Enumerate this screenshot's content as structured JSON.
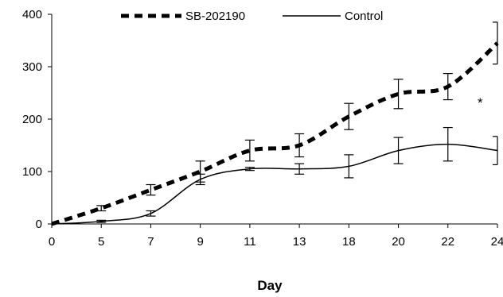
{
  "chart_data": {
    "type": "line",
    "xlabel": "Day",
    "ylabel": "",
    "x_ticks": [
      "0",
      "5",
      "7",
      "9",
      "11",
      "13",
      "18",
      "20",
      "22",
      "24"
    ],
    "y_ticks": [
      "0",
      "100",
      "200",
      "300",
      "400"
    ],
    "ylim": [
      0,
      400
    ],
    "grid": false,
    "legend_position": "top",
    "annotation": "*",
    "series": [
      {
        "name": "SB-202190",
        "style": "dashed-thick",
        "color": "#000000",
        "x": [
          "0",
          "5",
          "7",
          "9",
          "11",
          "13",
          "18",
          "20",
          "22",
          "24"
        ],
        "y": [
          0,
          30,
          65,
          100,
          140,
          150,
          205,
          248,
          262,
          345
        ],
        "error": [
          0,
          5,
          10,
          20,
          20,
          22,
          25,
          28,
          25,
          40
        ],
        "error_cap_side": "both"
      },
      {
        "name": "Control",
        "style": "solid",
        "color": "#000000",
        "x": [
          "0",
          "5",
          "7",
          "9",
          "11",
          "13",
          "18",
          "20",
          "22",
          "24"
        ],
        "y": [
          0,
          5,
          20,
          85,
          105,
          105,
          110,
          140,
          152,
          140
        ],
        "error": [
          0,
          2,
          5,
          10,
          3,
          10,
          22,
          25,
          32,
          27
        ],
        "error_cap_side": "both"
      }
    ]
  }
}
